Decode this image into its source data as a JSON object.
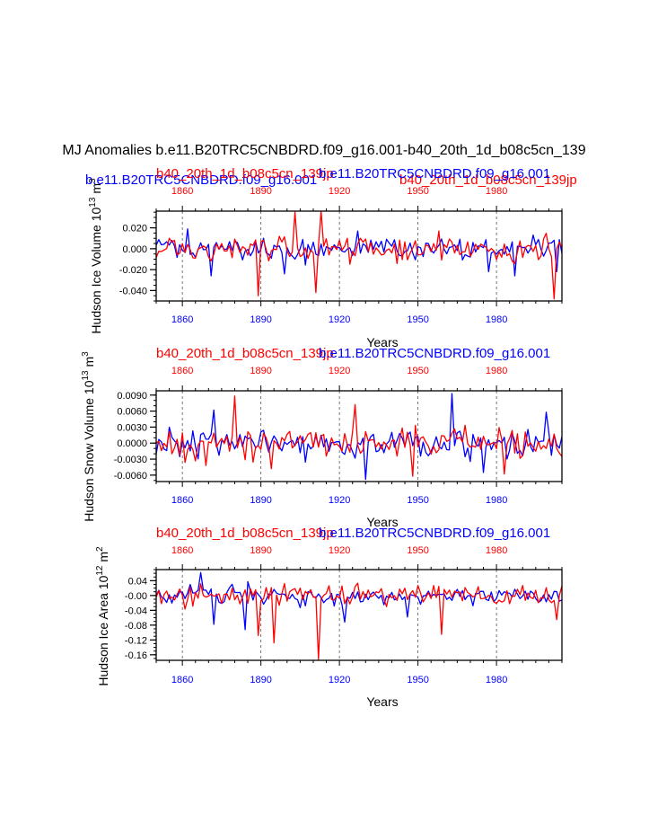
{
  "figure": {
    "title": "MJ Anomalies b.e11.B20TRC5CNBDRD.f09_g16.001-b40_20th_1d_b08c5cn_139",
    "overlap_labels": {
      "upper_left_blue": "b.e11.B20TRC5CNBDRD.f09_g16.001",
      "upper_right_red": "b40_20th_1d_b08c5cn_139jp"
    }
  },
  "colors": {
    "series_a": "#0000ff",
    "series_b": "#ff0000",
    "axis": "#000000"
  },
  "chart_data": [
    {
      "type": "line",
      "ylabel_main": "Hudson Ice Volume 10",
      "ylabel_exp": "13",
      "ylabel_unit": " m",
      "ylabel_unit_exp": "3",
      "xlabel": "Years",
      "top_left_label": "b40_20th_1d_b08c5cn_139jp",
      "top_right_label": "b.e11.B20TRC5CNBDRD.f09_g16.001",
      "xlim": [
        1850,
        2005
      ],
      "ylim": [
        -0.05,
        0.036
      ],
      "bottom_ticks": [
        1860,
        1890,
        1920,
        1950,
        1980
      ],
      "top_ticks": [
        1860,
        1890,
        1920,
        1950,
        1980
      ],
      "y_ticks": [
        "0.020",
        "0.000",
        "-0.020",
        "-0.040"
      ],
      "y_tick_values": [
        0.02,
        0.0,
        -0.02,
        -0.04
      ],
      "y_minor_step": 0.005,
      "series": [
        {
          "name": "b.e11.B20TRC5CNBDRD.f09_g16.001",
          "color": "blue",
          "amp": 0.011,
          "spikes": [
            [
              1862,
              0.019
            ],
            [
              1871,
              -0.026
            ],
            [
              1899,
              -0.024
            ],
            [
              1927,
              0.017
            ],
            [
              1977,
              -0.022
            ],
            [
              1987,
              -0.026
            ],
            [
              2003,
              -0.022
            ]
          ]
        },
        {
          "name": "b40_20th_1d_b08c5cn_139jp",
          "color": "red",
          "amp": 0.012,
          "spikes": [
            [
              1889,
              -0.045
            ],
            [
              1903,
              0.035
            ],
            [
              1911,
              -0.042
            ],
            [
              1913,
              0.036
            ],
            [
              1958,
              0.017
            ],
            [
              2002,
              -0.048
            ]
          ]
        }
      ]
    },
    {
      "type": "line",
      "ylabel_main": "Hudson Snow Volume 10",
      "ylabel_exp": "13",
      "ylabel_unit": " m",
      "ylabel_unit_exp": "3",
      "xlabel": "Years",
      "top_left_label": "b40_20th_1d_b08c5cn_139jp",
      "top_right_label": "b.e11.B20TRC5CNBDRD.f09_g16.001",
      "xlim": [
        1850,
        2005
      ],
      "ylim": [
        -0.0072,
        0.0098
      ],
      "bottom_ticks": [
        1860,
        1890,
        1920,
        1950,
        1980
      ],
      "top_ticks": [
        1860,
        1890,
        1920,
        1950,
        1980
      ],
      "y_ticks": [
        "0.0090",
        "0.0060",
        "0.0030",
        "0.0000",
        "-0.0030",
        "-0.0060"
      ],
      "y_tick_values": [
        0.009,
        0.006,
        0.003,
        0.0,
        -0.003,
        -0.006
      ],
      "y_minor_step": 0.001,
      "series": [
        {
          "name": "b.e11.B20TRC5CNBDRD.f09_g16.001",
          "color": "blue",
          "amp": 0.0028,
          "spikes": [
            [
              1872,
              0.0062
            ],
            [
              1930,
              -0.0068
            ],
            [
              1963,
              0.0093
            ],
            [
              1975,
              -0.0055
            ],
            [
              1999,
              0.0058
            ]
          ]
        },
        {
          "name": "b40_20th_1d_b08c5cn_139jp",
          "color": "red",
          "amp": 0.003,
          "spikes": [
            [
              1869,
              -0.0042
            ],
            [
              1880,
              0.0088
            ],
            [
              1894,
              -0.0048
            ],
            [
              1926,
              0.0072
            ],
            [
              1948,
              -0.0062
            ],
            [
              1983,
              -0.0058
            ]
          ]
        }
      ]
    },
    {
      "type": "line",
      "ylabel_main": "Hudson Ice Area 10",
      "ylabel_exp": "12",
      "ylabel_unit": " m",
      "ylabel_unit_exp": "2",
      "xlabel": "Years",
      "top_left_label": "b40_20th_1d_b08c5cn_139jp",
      "top_right_label": "b.e11.B20TRC5CNBDRD.f09_g16.001",
      "xlim": [
        1850,
        2005
      ],
      "ylim": [
        -0.175,
        0.07
      ],
      "bottom_ticks": [
        1860,
        1890,
        1920,
        1950,
        1980
      ],
      "top_ticks": [
        1860,
        1890,
        1920,
        1950,
        1980
      ],
      "y_ticks": [
        "0.04",
        "-0.00",
        "-0.04",
        "-0.08",
        "-0.12",
        "-0.16"
      ],
      "y_tick_values": [
        0.04,
        0.0,
        -0.04,
        -0.08,
        -0.12,
        -0.16
      ],
      "y_minor_step": 0.01,
      "series": [
        {
          "name": "b.e11.B20TRC5CNBDRD.f09_g16.001",
          "color": "blue",
          "amp": 0.025,
          "spikes": [
            [
              1867,
              0.062
            ],
            [
              1872,
              -0.078
            ],
            [
              1884,
              -0.092
            ],
            [
              1922,
              -0.072
            ],
            [
              1946,
              -0.058
            ]
          ]
        },
        {
          "name": "b40_20th_1d_b08c5cn_139jp",
          "color": "red",
          "amp": 0.03,
          "spikes": [
            [
              1889,
              -0.108
            ],
            [
              1895,
              -0.128
            ],
            [
              1912,
              -0.172
            ],
            [
              1959,
              -0.105
            ],
            [
              2003,
              -0.065
            ]
          ]
        }
      ]
    }
  ]
}
